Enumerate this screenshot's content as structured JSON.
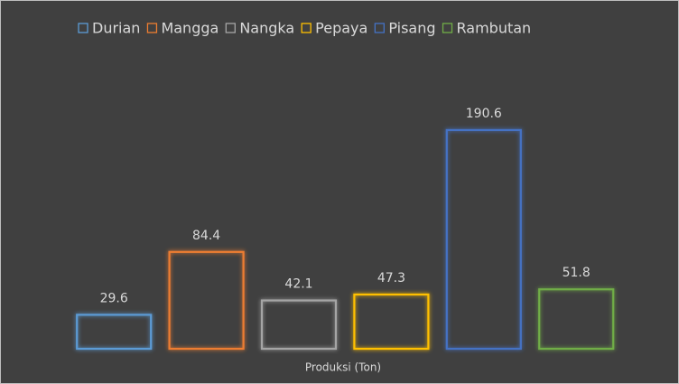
{
  "chart_data": {
    "type": "bar",
    "x_label": "Produksi (Ton)",
    "series": [
      {
        "name": "Durian",
        "color": "#5b9bd5",
        "values": [
          29.6
        ]
      },
      {
        "name": "Mangga",
        "color": "#ed7d31",
        "values": [
          84.4
        ]
      },
      {
        "name": "Nangka",
        "color": "#a5a5a5",
        "values": [
          42.1
        ]
      },
      {
        "name": "Pepaya",
        "color": "#ffc000",
        "values": [
          47.3
        ]
      },
      {
        "name": "Pisang",
        "color": "#4472c4",
        "values": [
          190.6
        ]
      },
      {
        "name": "Rambutan",
        "color": "#70ad47",
        "values": [
          51.8
        ]
      }
    ],
    "ylim": [
      0,
      200
    ],
    "legend": "top"
  }
}
